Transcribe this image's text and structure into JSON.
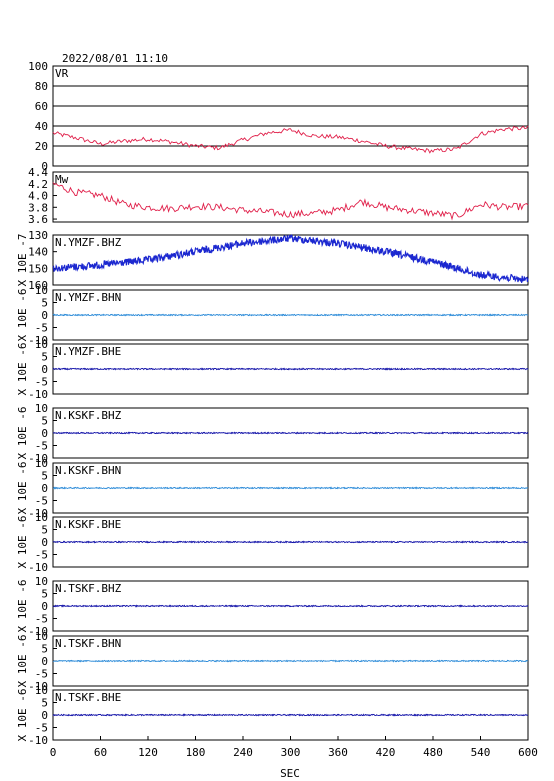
{
  "header": {
    "title": "2022/08/01 11:10"
  },
  "colors": {
    "vr": "#e0204a",
    "mw": "#e0204a",
    "dark_trace": "#1010a8",
    "light_trace": "#2a8ad8",
    "strong_trace": "#1c28d0",
    "grid": "#000000"
  },
  "xaxis": {
    "label": "SEC",
    "ticks": [
      "0",
      "60",
      "120",
      "180",
      "240",
      "300",
      "360",
      "420",
      "480",
      "540",
      "600"
    ]
  },
  "chart_data": [
    {
      "type": "line",
      "name": "VR",
      "label": "VR",
      "ylim": [
        0,
        100
      ],
      "ticks": [
        "100",
        "80",
        "60",
        "40",
        "20",
        "0"
      ],
      "x": [
        0,
        30,
        60,
        90,
        120,
        150,
        180,
        210,
        240,
        270,
        300,
        330,
        360,
        390,
        420,
        450,
        480,
        510,
        540,
        570,
        600
      ],
      "y": [
        33,
        28,
        22,
        25,
        27,
        24,
        20,
        18,
        26,
        33,
        36,
        30,
        29,
        25,
        20,
        17,
        15,
        17,
        32,
        37,
        38
      ]
    },
    {
      "type": "line",
      "name": "Mw",
      "label": "Mw",
      "ylim": [
        3.55,
        4.4
      ],
      "ticks": [
        "4.4",
        "4.2",
        "4.0",
        "3.8",
        "3.6"
      ],
      "x": [
        0,
        30,
        60,
        90,
        120,
        150,
        180,
        210,
        240,
        270,
        300,
        330,
        360,
        390,
        420,
        450,
        480,
        510,
        540,
        570,
        600
      ],
      "y": [
        4.2,
        4.05,
        4.0,
        3.85,
        3.8,
        3.78,
        3.82,
        3.8,
        3.75,
        3.72,
        3.68,
        3.7,
        3.75,
        3.9,
        3.8,
        3.75,
        3.7,
        3.65,
        3.85,
        3.8,
        3.82
      ]
    },
    {
      "type": "line",
      "name": "N.YMZF.BHZ",
      "label": "N.YMZF.BHZ",
      "ylim": [
        160,
        130
      ],
      "ticks": [
        "130",
        "140",
        "150",
        "160"
      ],
      "ylabel": "X 10E -7",
      "x": [
        0,
        60,
        120,
        180,
        240,
        300,
        360,
        420,
        480,
        540,
        600
      ],
      "y": [
        150,
        148,
        145,
        140,
        135,
        132,
        135,
        140,
        146,
        154,
        157
      ]
    },
    {
      "type": "line",
      "name": "N.YMZF.BHN",
      "label": "N.YMZF.BHN",
      "ylim": [
        -10,
        10
      ],
      "ticks": [
        "10",
        "5",
        "0",
        "-5",
        "-10"
      ],
      "ylabel": "X 10E -6",
      "x": [
        0,
        600
      ],
      "y": [
        0,
        0
      ]
    },
    {
      "type": "line",
      "name": "N.YMZF.BHE",
      "label": "N.YMZF.BHE",
      "ylim": [
        -10,
        10
      ],
      "ticks": [
        "10",
        "5",
        "0",
        "-5",
        "-10"
      ],
      "ylabel": "X 10E -6",
      "x": [
        0,
        600
      ],
      "y": [
        0,
        0
      ]
    },
    {
      "type": "line",
      "name": "N.KSKF.BHZ",
      "label": "N.KSKF.BHZ",
      "ylim": [
        -10,
        10
      ],
      "ticks": [
        "10",
        "5",
        "0",
        "-5",
        "-10"
      ],
      "ylabel": "X 10E -6",
      "x": [
        0,
        600
      ],
      "y": [
        0,
        0
      ]
    },
    {
      "type": "line",
      "name": "N.KSKF.BHN",
      "label": "N.KSKF.BHN",
      "ylim": [
        -10,
        10
      ],
      "ticks": [
        "10",
        "5",
        "0",
        "-5",
        "-10"
      ],
      "ylabel": "X 10E -6",
      "x": [
        0,
        600
      ],
      "y": [
        0,
        0
      ]
    },
    {
      "type": "line",
      "name": "N.KSKF.BHE",
      "label": "N.KSKF.BHE",
      "ylim": [
        -10,
        10
      ],
      "ticks": [
        "10",
        "5",
        "0",
        "-5",
        "-10"
      ],
      "ylabel": "X 10E -6",
      "x": [
        0,
        600
      ],
      "y": [
        0,
        0
      ]
    },
    {
      "type": "line",
      "name": "N.TSKF.BHZ",
      "label": "N.TSKF.BHZ",
      "ylim": [
        -10,
        10
      ],
      "ticks": [
        "10",
        "5",
        "0",
        "-5",
        "-10"
      ],
      "ylabel": "X 10E -6",
      "x": [
        0,
        600
      ],
      "y": [
        0,
        0
      ]
    },
    {
      "type": "line",
      "name": "N.TSKF.BHN",
      "label": "N.TSKF.BHN",
      "ylim": [
        -10,
        10
      ],
      "ticks": [
        "10",
        "5",
        "0",
        "-5",
        "-10"
      ],
      "ylabel": "X 10E -6",
      "x": [
        0,
        600
      ],
      "y": [
        0,
        0
      ]
    },
    {
      "type": "line",
      "name": "N.TSKF.BHE",
      "label": "N.TSKF.BHE",
      "ylim": [
        -10,
        10
      ],
      "ticks": [
        "10",
        "5",
        "0",
        "-5",
        "-10"
      ],
      "ylabel": "X 10E -6",
      "x": [
        0,
        600
      ],
      "y": [
        0,
        0
      ]
    }
  ]
}
